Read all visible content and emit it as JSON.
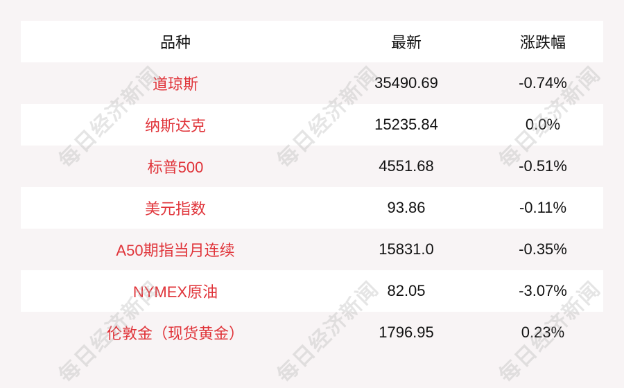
{
  "header": {
    "name": "品种",
    "latest": "最新",
    "change": "涨跌幅"
  },
  "rows": [
    {
      "name": "道琼斯",
      "latest": "35490.69",
      "change": "-0.74%"
    },
    {
      "name": "纳斯达克",
      "latest": "15235.84",
      "change": "0.0%"
    },
    {
      "name": "标普500",
      "latest": "4551.68",
      "change": "-0.51%"
    },
    {
      "name": "美元指数",
      "latest": "93.86",
      "change": "-0.11%"
    },
    {
      "name": "A50期指当月连续",
      "latest": "15831.0",
      "change": "-0.35%"
    },
    {
      "name": "NYMEX原油",
      "latest": "82.05",
      "change": "-3.07%"
    },
    {
      "name": "伦敦金（现货黄金）",
      "latest": "1796.95",
      "change": "0.23%"
    }
  ],
  "watermark": "每日经济新闻",
  "colors": {
    "name_text": "#e0343a",
    "background": "#f8f4f5",
    "row_alt": "#ffffff"
  }
}
